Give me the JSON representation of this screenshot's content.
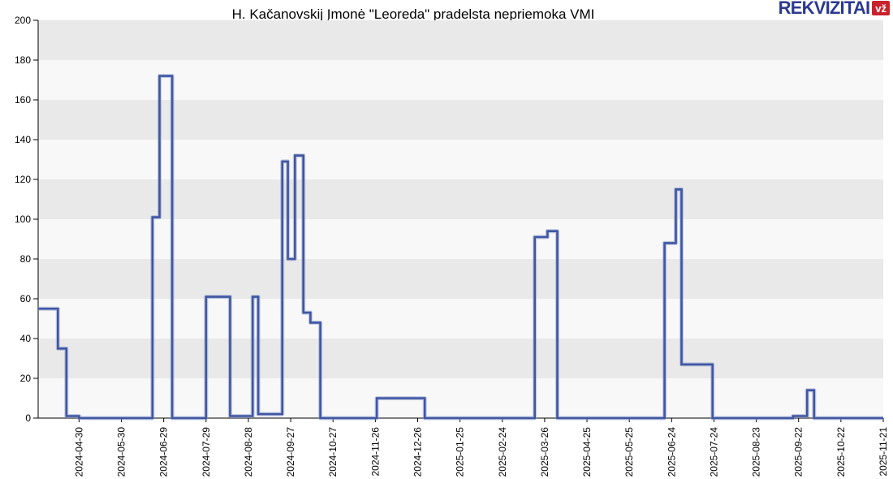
{
  "title": "H. Kačanovskij Įmonė \"Leoreda\" pradelsta nepriemoka VMI",
  "logo": {
    "text": "REKVIZITAI",
    "badge": "vž",
    "brand_color": "#2b3990",
    "badge_color": "#c8232c"
  },
  "chart_data": {
    "type": "line",
    "step": true,
    "title": "H. Kačanovskij Įmonė \"Leoreda\" pradelsta nepriemoka VMI",
    "xlabel": "",
    "ylabel": "",
    "ylim": [
      0,
      200
    ],
    "y_ticks": [
      0,
      20,
      40,
      60,
      80,
      100,
      120,
      140,
      160,
      180,
      200
    ],
    "x_domain": [
      "2024-04-01",
      "2025-11-21"
    ],
    "x_ticks": [
      "2024-04-30",
      "2024-05-30",
      "2024-06-29",
      "2024-07-29",
      "2024-08-28",
      "2024-09-27",
      "2024-10-27",
      "2024-11-26",
      "2024-12-26",
      "2025-01-25",
      "2025-02-24",
      "2025-03-26",
      "2025-04-25",
      "2025-05-25",
      "2025-06-24",
      "2025-07-24",
      "2025-08-23",
      "2025-09-22",
      "2025-10-22",
      "2025-11-21"
    ],
    "grid": "alternating-horizontal-bands",
    "legend": "none",
    "colors": {
      "line": "#3f56a3",
      "line_edge": "#8a97c8",
      "band_dark": "#e9e9e9",
      "band_light": "#f8f8f8",
      "axis": "#000000"
    },
    "series": [
      {
        "name": "pradelsta nepriemoka VMI",
        "points": [
          [
            "2024-04-01",
            55
          ],
          [
            "2024-04-15",
            35
          ],
          [
            "2024-04-21",
            1
          ],
          [
            "2024-04-30",
            0
          ],
          [
            "2024-06-21",
            101
          ],
          [
            "2024-06-26",
            172
          ],
          [
            "2024-07-05",
            0
          ],
          [
            "2024-07-29",
            61
          ],
          [
            "2024-08-15",
            1
          ],
          [
            "2024-08-31",
            61
          ],
          [
            "2024-09-04",
            2
          ],
          [
            "2024-09-21",
            129
          ],
          [
            "2024-09-25",
            80
          ],
          [
            "2024-09-30",
            132
          ],
          [
            "2024-10-06",
            53
          ],
          [
            "2024-10-11",
            48
          ],
          [
            "2024-10-18",
            0
          ],
          [
            "2024-11-27",
            10
          ],
          [
            "2024-12-31",
            0
          ],
          [
            "2025-03-19",
            91
          ],
          [
            "2025-03-28",
            94
          ],
          [
            "2025-04-04",
            0
          ],
          [
            "2025-06-19",
            88
          ],
          [
            "2025-06-27",
            115
          ],
          [
            "2025-07-01",
            27
          ],
          [
            "2025-07-23",
            0
          ],
          [
            "2025-09-18",
            1
          ],
          [
            "2025-09-28",
            14
          ],
          [
            "2025-10-03",
            0
          ]
        ]
      }
    ]
  }
}
